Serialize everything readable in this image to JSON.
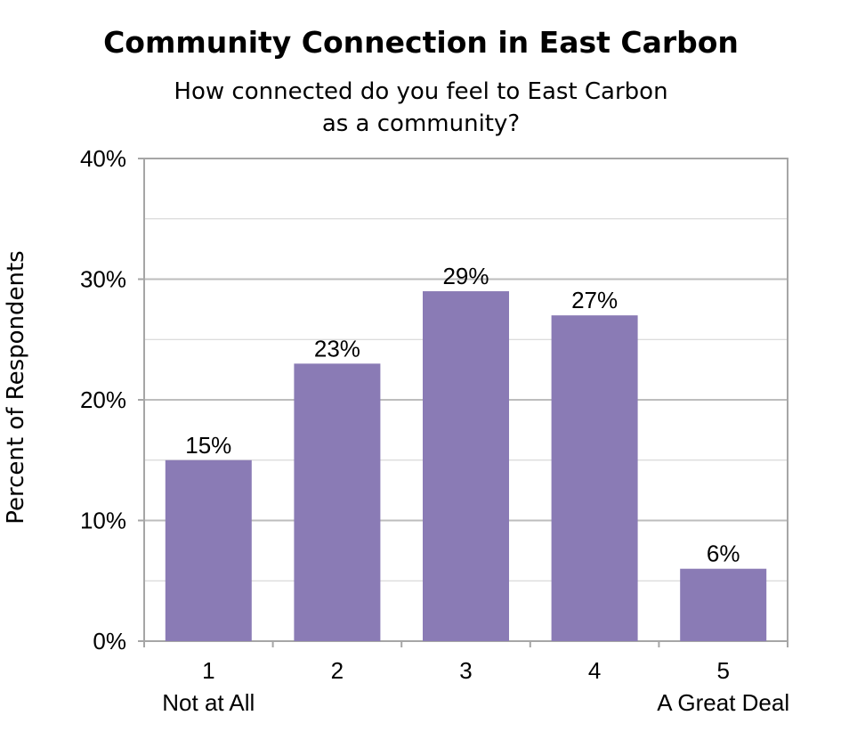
{
  "chart_data": {
    "type": "bar",
    "title": "Community Connection in East Carbon",
    "subtitle_lines": [
      "How connected do you feel to East Carbon",
      "as a community?"
    ],
    "xlabel": "",
    "ylabel": "Percent of Respondents",
    "categories": [
      "1",
      "2",
      "3",
      "4",
      "5"
    ],
    "category_sublabels": [
      "Not at All",
      "",
      "",
      "",
      "A Great Deal"
    ],
    "values": [
      15,
      23,
      29,
      27,
      6
    ],
    "value_labels": [
      "15%",
      "23%",
      "29%",
      "27%",
      "6%"
    ],
    "ylim": [
      0,
      40
    ],
    "yticks": [
      0,
      10,
      20,
      30,
      40
    ],
    "ytick_labels": [
      "0%",
      "10%",
      "20%",
      "30%",
      "40%"
    ],
    "minor_gridlines": [
      5,
      15,
      25,
      35
    ],
    "grid": true,
    "legend": "none",
    "bar_color": "#8a7bb5",
    "grid_color": "#bdbdbd",
    "axis_color": "#a6a6a6"
  }
}
